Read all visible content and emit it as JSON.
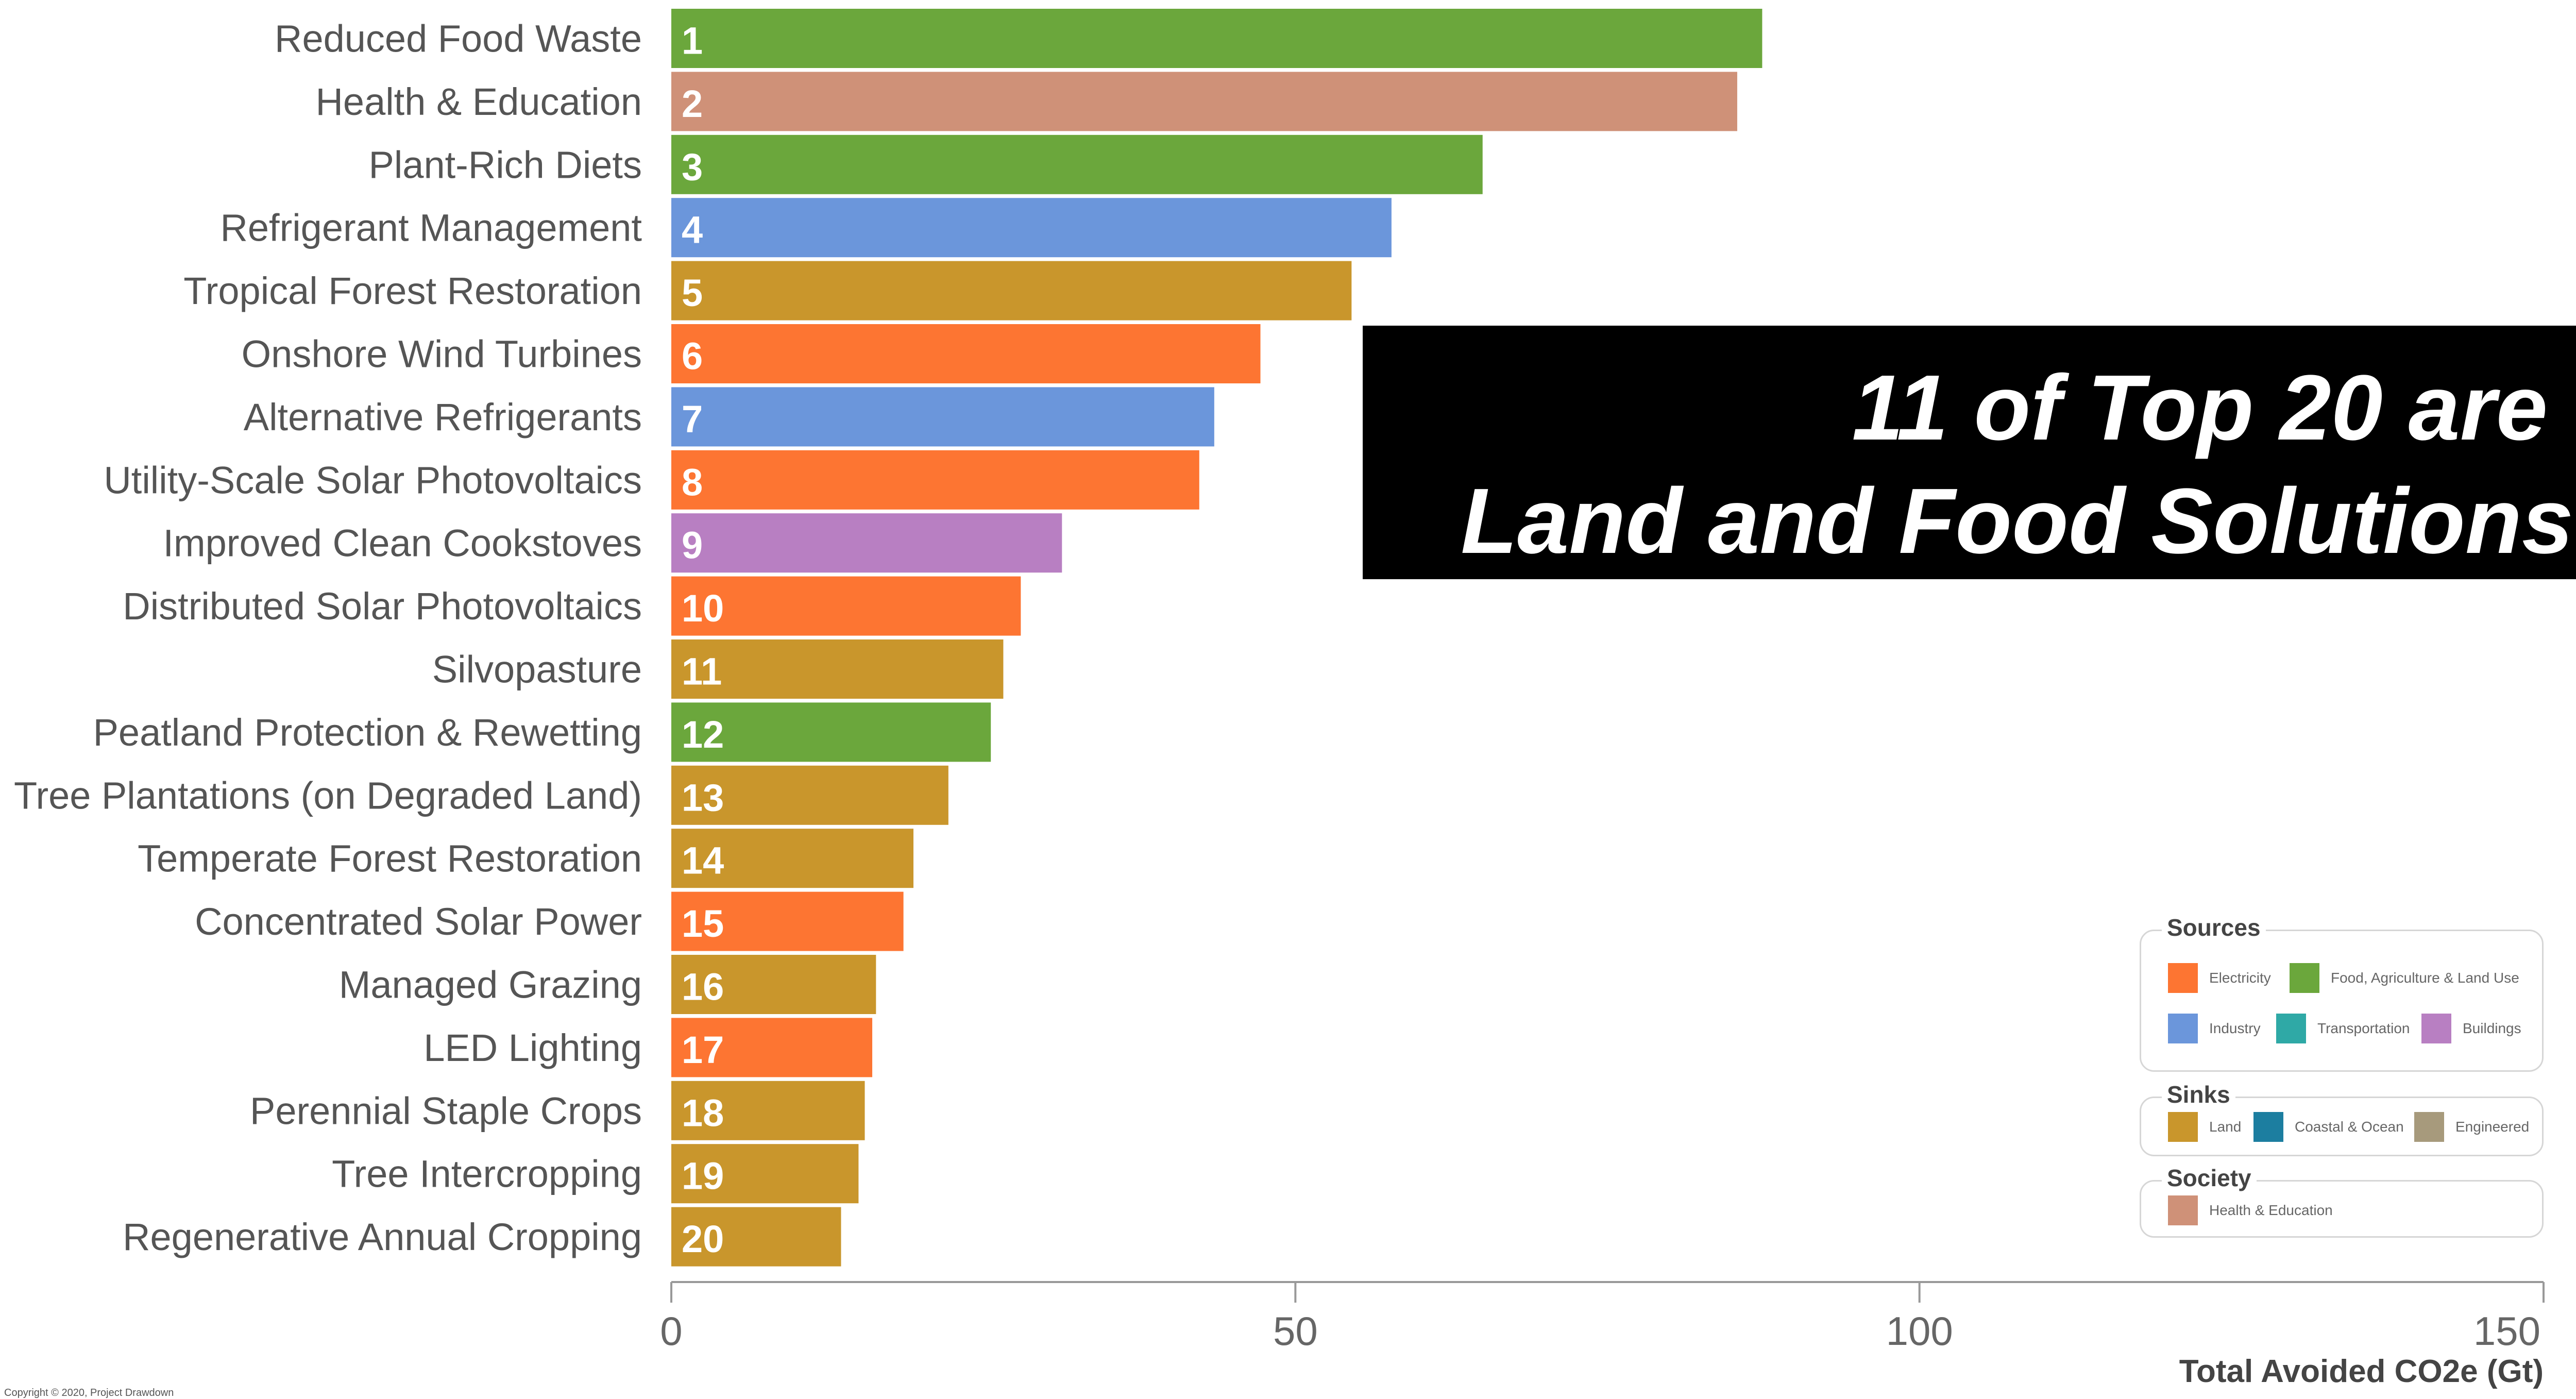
{
  "chart_data": {
    "type": "bar",
    "orientation": "horizontal",
    "categories": [
      "Reduced Food Waste",
      "Health & Education",
      "Plant-Rich Diets",
      "Refrigerant Management",
      "Tropical Forest Restoration",
      "Onshore Wind Turbines",
      "Alternative Refrigerants",
      "Utility-Scale Solar Photovoltaics",
      "Improved Clean Cookstoves",
      "Distributed Solar Photovoltaics",
      "Silvopasture",
      "Peatland Protection & Rewetting",
      "Tree Plantations (on Degraded Land)",
      "Temperate Forest Restoration",
      "Concentrated Solar Power",
      "Managed Grazing",
      "LED Lighting",
      "Perennial Staple Crops",
      "Tree Intercropping",
      "Regenerative Annual Cropping"
    ],
    "ranks": [
      "1",
      "2",
      "3",
      "4",
      "5",
      "6",
      "7",
      "8",
      "9",
      "10",
      "11",
      "12",
      "13",
      "14",
      "15",
      "16",
      "17",
      "18",
      "19",
      "20"
    ],
    "values": [
      87.4,
      85.4,
      65.0,
      57.7,
      54.5,
      47.2,
      43.5,
      42.3,
      31.3,
      28.0,
      26.6,
      25.6,
      22.2,
      19.4,
      18.6,
      16.4,
      16.1,
      15.5,
      15.0,
      13.6
    ],
    "groups": [
      "Food, Agriculture & Land Use",
      "Health & Education",
      "Food, Agriculture & Land Use",
      "Industry",
      "Land",
      "Electricity",
      "Industry",
      "Electricity",
      "Buildings",
      "Electricity",
      "Land",
      "Food, Agriculture & Land Use",
      "Land",
      "Land",
      "Electricity",
      "Land",
      "Electricity",
      "Land",
      "Land",
      "Land"
    ],
    "xlabel": "Total Avoided CO2e (Gt)",
    "xlim": [
      0,
      150
    ],
    "xticks": [
      "0",
      "50",
      "100",
      "150"
    ],
    "grid": false,
    "legend_position": "bottom-right",
    "colors": {
      "Electricity": "#fd7532",
      "Food, Agriculture & Land Use": "#6ba73c",
      "Industry": "#6b96db",
      "Transportation": "#2fa9a6",
      "Buildings": "#b87fc2",
      "Land": "#c9962c",
      "Coastal & Ocean": "#1c7ea0",
      "Engineered": "#a79a7c",
      "Health & Education": "#cf9178"
    }
  },
  "callout": {
    "line1": "11 of Top 20 are",
    "line2": "Land and Food Solutions"
  },
  "legend": {
    "sources": {
      "title": "Sources",
      "items": [
        "Electricity",
        "Food, Agriculture & Land Use",
        "Industry",
        "Transportation",
        "Buildings"
      ]
    },
    "sinks": {
      "title": "Sinks",
      "items": [
        "Land",
        "Coastal & Ocean",
        "Engineered"
      ]
    },
    "society": {
      "title": "Society",
      "items": [
        "Health & Education"
      ]
    }
  },
  "copyright": "Copyright © 2020, Project Drawdown"
}
